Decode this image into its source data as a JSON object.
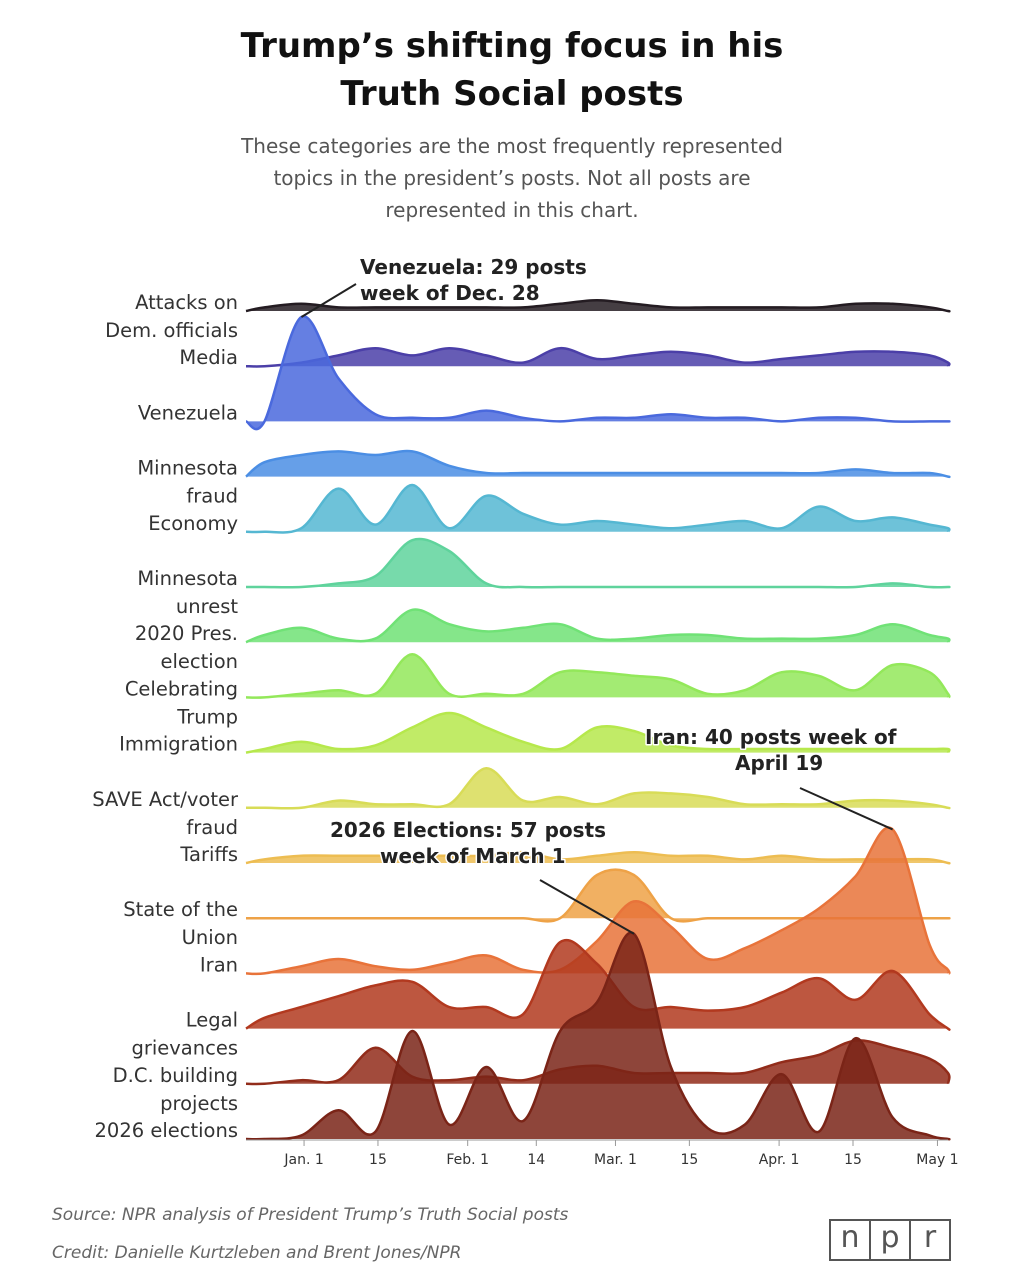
{
  "chart_data": {
    "type": "ridgeline",
    "title": "Trump’s shifting focus in his Truth Social posts",
    "title_lines": [
      "Trump’s shifting focus in his",
      "Truth Social posts"
    ],
    "subtitle": "These categories are the most frequently represented topics in the president’s posts. Not all posts are represented in this chart.",
    "subtitle_lines": [
      "These categories are the most frequently represented",
      "topics in the president’s posts. Not all posts are",
      "represented in this chart."
    ],
    "x_unit": "week starting (date)",
    "x_ticks": [
      {
        "label": "Jan. 1",
        "date": "2026-01-01"
      },
      {
        "label": "15",
        "date": "2026-01-15"
      },
      {
        "label": "Feb. 1",
        "date": "2026-02-01"
      },
      {
        "label": "14",
        "date": "2026-02-14"
      },
      {
        "label": "Mar. 1",
        "date": "2026-03-01"
      },
      {
        "label": "15",
        "date": "2026-03-15"
      },
      {
        "label": "Apr. 1",
        "date": "2026-04-01"
      },
      {
        "label": "15",
        "date": "2026-04-15"
      },
      {
        "label": "May 1",
        "date": "2026-05-01"
      }
    ],
    "x_range": [
      "2025-12-21",
      "2026-05-03"
    ],
    "weeks": [
      "2025-12-21",
      "2025-12-28",
      "2026-01-04",
      "2026-01-11",
      "2026-01-18",
      "2026-01-25",
      "2026-02-01",
      "2026-02-08",
      "2026-02-15",
      "2026-02-22",
      "2026-03-01",
      "2026-03-08",
      "2026-03-15",
      "2026-03-22",
      "2026-03-29",
      "2026-04-05",
      "2026-04-12",
      "2026-04-19",
      "2026-04-26",
      "2026-05-03"
    ],
    "series": [
      {
        "name": "Attacks on Dem. officials",
        "label_lines": [
          "Attacks on",
          "Dem. officials"
        ],
        "color": "#241c22",
        "values": [
          1,
          2,
          1,
          1,
          1,
          1,
          1,
          1,
          2,
          3,
          2,
          1,
          1,
          1,
          1,
          1,
          2,
          2,
          1,
          0
        ]
      },
      {
        "name": "Media",
        "label_lines": [
          "Media"
        ],
        "color": "#4b3fa8",
        "values": [
          0,
          1,
          3,
          5,
          3,
          5,
          3,
          1,
          5,
          2,
          3,
          4,
          3,
          1,
          2,
          3,
          4,
          4,
          3,
          1
        ]
      },
      {
        "name": "Venezuela",
        "label_lines": [
          "Venezuela"
        ],
        "color": "#4a69dd",
        "values": [
          0,
          29,
          12,
          2,
          1,
          1,
          3,
          1,
          0,
          1,
          1,
          2,
          1,
          1,
          0,
          1,
          1,
          0,
          0,
          0
        ]
      },
      {
        "name": "Minnesota fraud",
        "label_lines": [
          "Minnesota",
          "fraud"
        ],
        "color": "#4b8ee4",
        "values": [
          4,
          6,
          7,
          6,
          7,
          3,
          1,
          1,
          1,
          1,
          1,
          1,
          1,
          1,
          1,
          1,
          2,
          1,
          1,
          0
        ]
      },
      {
        "name": "Economy",
        "label_lines": [
          "Economy"
        ],
        "color": "#55b7d2",
        "values": [
          0,
          1,
          12,
          2,
          13,
          1,
          10,
          5,
          2,
          3,
          2,
          1,
          2,
          3,
          1,
          7,
          3,
          4,
          2,
          1
        ]
      },
      {
        "name": "Minnesota unrest",
        "label_lines": [
          "Minnesota",
          "unrest"
        ],
        "color": "#5fd39c",
        "values": [
          0,
          0,
          1,
          3,
          13,
          10,
          1,
          0,
          0,
          0,
          0,
          0,
          0,
          0,
          0,
          0,
          0,
          1,
          0,
          0
        ]
      },
      {
        "name": "2020 Pres. election",
        "label_lines": [
          "2020 Pres.",
          "election"
        ],
        "color": "#70e276",
        "values": [
          2,
          4,
          1,
          1,
          9,
          5,
          3,
          4,
          5,
          1,
          1,
          2,
          2,
          1,
          1,
          1,
          2,
          5,
          2,
          1
        ]
      },
      {
        "name": "Celebrating Trump",
        "label_lines": [
          "Celebrating",
          "Trump"
        ],
        "color": "#93e85a",
        "values": [
          0,
          1,
          2,
          1,
          12,
          1,
          1,
          1,
          7,
          7,
          6,
          5,
          1,
          2,
          7,
          6,
          2,
          9,
          7,
          1
        ]
      },
      {
        "name": "Immigration",
        "label_lines": [
          "Immigration"
        ],
        "color": "#b6e84c",
        "values": [
          1,
          3,
          1,
          2,
          7,
          11,
          7,
          3,
          1,
          7,
          6,
          2,
          1,
          1,
          1,
          1,
          1,
          1,
          1,
          1
        ]
      },
      {
        "name": "SAVE Act/voter fraud",
        "label_lines": [
          "SAVE Act/voter",
          "fraud"
        ],
        "color": "#d8dc57",
        "values": [
          0,
          0,
          2,
          1,
          1,
          1,
          11,
          2,
          3,
          1,
          4,
          4,
          3,
          1,
          1,
          1,
          2,
          2,
          1,
          0
        ]
      },
      {
        "name": "Tariffs",
        "label_lines": [
          "Tariffs"
        ],
        "color": "#edbd52",
        "values": [
          1,
          2,
          2,
          2,
          2,
          2,
          2,
          3,
          1,
          2,
          3,
          2,
          2,
          1,
          2,
          1,
          1,
          1,
          1,
          0
        ]
      },
      {
        "name": "State of the Union",
        "label_lines": [
          "State of the",
          "Union"
        ],
        "color": "#eea247",
        "values": [
          0,
          0,
          0,
          0,
          0,
          0,
          0,
          0,
          0,
          12,
          12,
          0,
          0,
          0,
          0,
          0,
          0,
          0,
          0,
          0
        ]
      },
      {
        "name": "Iran",
        "label_lines": [
          "Iran"
        ],
        "color": "#e8733a",
        "values": [
          0,
          2,
          4,
          2,
          1,
          3,
          5,
          1,
          1,
          9,
          20,
          13,
          4,
          7,
          12,
          18,
          27,
          40,
          8,
          1
        ]
      },
      {
        "name": "Legal grievances",
        "label_lines": [
          "Legal",
          "grievances"
        ],
        "color": "#b2391f",
        "values": [
          3,
          6,
          9,
          12,
          13,
          6,
          6,
          4,
          24,
          18,
          6,
          6,
          5,
          6,
          10,
          14,
          8,
          16,
          4,
          0
        ]
      },
      {
        "name": "D.C. building projects",
        "label_lines": [
          "D.C. building",
          "projects"
        ],
        "color": "#922c1a",
        "values": [
          0,
          1,
          1,
          10,
          2,
          1,
          2,
          1,
          4,
          5,
          3,
          3,
          3,
          3,
          6,
          8,
          12,
          10,
          7,
          3
        ]
      },
      {
        "name": "2026 elections",
        "label_lines": [
          "2026 elections"
        ],
        "color": "#7a2417",
        "values": [
          0,
          1,
          8,
          2,
          30,
          4,
          20,
          5,
          30,
          38,
          57,
          20,
          3,
          4,
          18,
          2,
          28,
          6,
          1,
          0
        ]
      }
    ],
    "annotations": [
      {
        "lines": [
          "Venezuela: 29 posts",
          "week of Dec. 28"
        ],
        "series": "Venezuela",
        "week": "2025-12-28",
        "value": 29
      },
      {
        "lines": [
          "Iran: 40 posts week of",
          "April 19"
        ],
        "series": "Iran",
        "week": "2026-04-19",
        "value": 40
      },
      {
        "lines": [
          "2026 Elections: 57 posts",
          "week of March 1"
        ],
        "series": "2026 elections",
        "week": "2026-03-01",
        "value": 57
      }
    ],
    "legend": "none",
    "grid": false
  },
  "footer": {
    "source": "Source: NPR analysis of President Trump’s Truth Social posts",
    "credit": "Credit: Danielle Kurtzleben and Brent Jones/NPR",
    "logo_letters": [
      "n",
      "p",
      "r"
    ]
  }
}
